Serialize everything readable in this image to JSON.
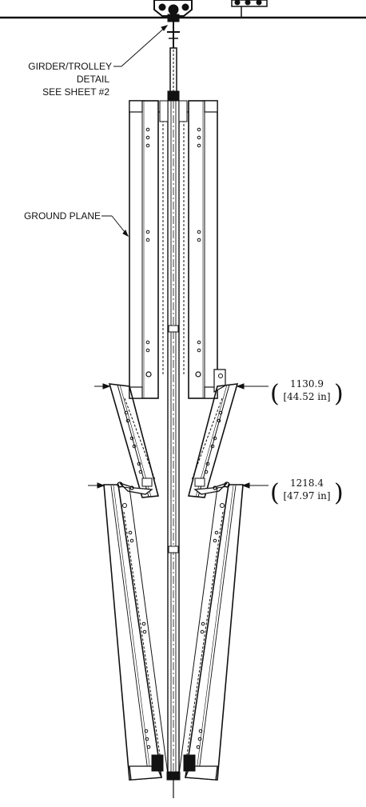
{
  "callouts": {
    "girder_trolley": [
      "GIRDER/TROLLEY",
      "DETAIL",
      "SEE SHEET #2"
    ],
    "ground_plane": "GROUND PLANE"
  },
  "dimensions": [
    {
      "value": "1130.9",
      "inches": "[44.52 in]"
    },
    {
      "value": "1218.4",
      "inches": "[47.97 in]"
    }
  ],
  "style": {
    "line_color": "#111111",
    "background": "#ffffff"
  }
}
